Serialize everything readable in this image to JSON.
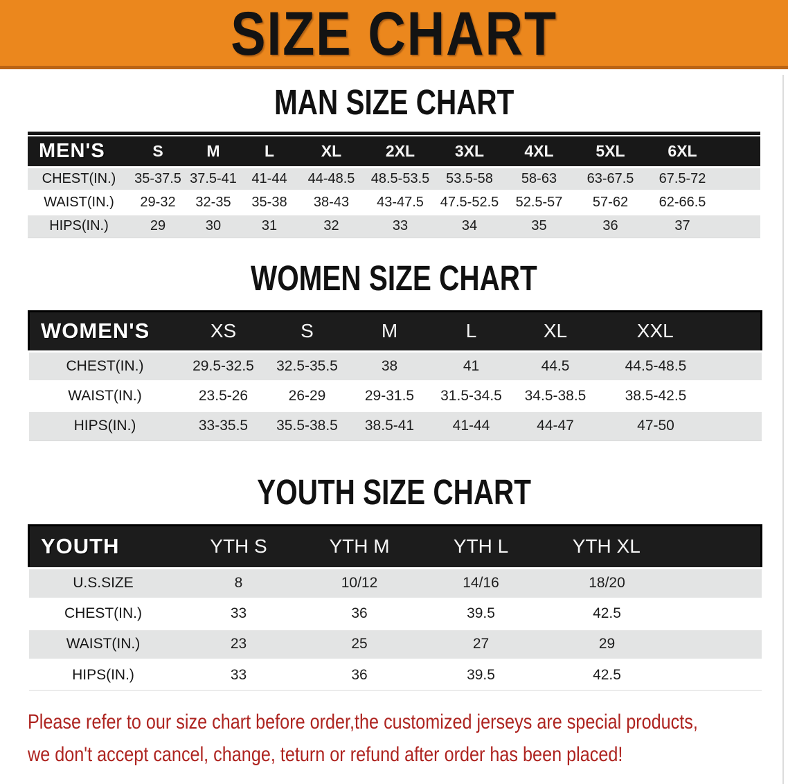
{
  "banner": {
    "title": "SIZE CHART"
  },
  "men": {
    "heading": "MAN SIZE CHART",
    "table": {
      "label": "MEN'S",
      "columns": [
        "S",
        "M",
        "L",
        "XL",
        "2XL",
        "3XL",
        "4XL",
        "5XL",
        "6XL"
      ],
      "rows": [
        {
          "label": "CHEST(IN.)",
          "cells": [
            "35-37.5",
            "37.5-41",
            "41-44",
            "44-48.5",
            "48.5-53.5",
            "53.5-58",
            "58-63",
            "63-67.5",
            "67.5-72"
          ]
        },
        {
          "label": "WAIST(IN.)",
          "cells": [
            "29-32",
            "32-35",
            "35-38",
            "38-43",
            "43-47.5",
            "47.5-52.5",
            "52.5-57",
            "57-62",
            "62-66.5"
          ]
        },
        {
          "label": "HIPS(IN.)",
          "cells": [
            "29",
            "30",
            "31",
            "32",
            "33",
            "34",
            "35",
            "36",
            "37"
          ]
        }
      ]
    }
  },
  "women": {
    "heading": "WOMEN SIZE CHART",
    "table": {
      "label": "WOMEN'S",
      "columns": [
        "XS",
        "S",
        "M",
        "L",
        "XL",
        "XXL"
      ],
      "rows": [
        {
          "label": "CHEST(IN.)",
          "cells": [
            "29.5-32.5",
            "32.5-35.5",
            "38",
            "41",
            "44.5",
            "44.5-48.5"
          ]
        },
        {
          "label": "WAIST(IN.)",
          "cells": [
            "23.5-26",
            "26-29",
            "29-31.5",
            "31.5-34.5",
            "34.5-38.5",
            "38.5-42.5"
          ]
        },
        {
          "label": "HIPS(IN.)",
          "cells": [
            "33-35.5",
            "35.5-38.5",
            "38.5-41",
            "41-44",
            "44-47",
            "47-50"
          ]
        }
      ]
    }
  },
  "youth": {
    "heading": "YOUTH SIZE CHART",
    "table": {
      "label": "YOUTH",
      "columns": [
        "YTH S",
        "YTH M",
        "YTH L",
        "YTH XL"
      ],
      "rows": [
        {
          "label": "U.S.SIZE",
          "cells": [
            "8",
            "10/12",
            "14/16",
            "18/20"
          ]
        },
        {
          "label": "CHEST(IN.)",
          "cells": [
            "33",
            "36",
            "39.5",
            "42.5"
          ]
        },
        {
          "label": "WAIST(IN.)",
          "cells": [
            "23",
            "25",
            "27",
            "29"
          ]
        },
        {
          "label": "HIPS(IN.)",
          "cells": [
            "33",
            "36",
            "39.5",
            "42.5"
          ]
        }
      ]
    }
  },
  "footer": {
    "line1": "Please refer to our size chart before order,the customized jerseys are special products,",
    "line2": "we don't accept cancel, change, teturn or refund after order has been placed!"
  },
  "colors": {
    "banner_orange": "#EB871D",
    "banner_edge": "#BA6414",
    "header_black": "#181818",
    "row_gray": "#E3E4E4",
    "note_red": "#AE2420"
  }
}
